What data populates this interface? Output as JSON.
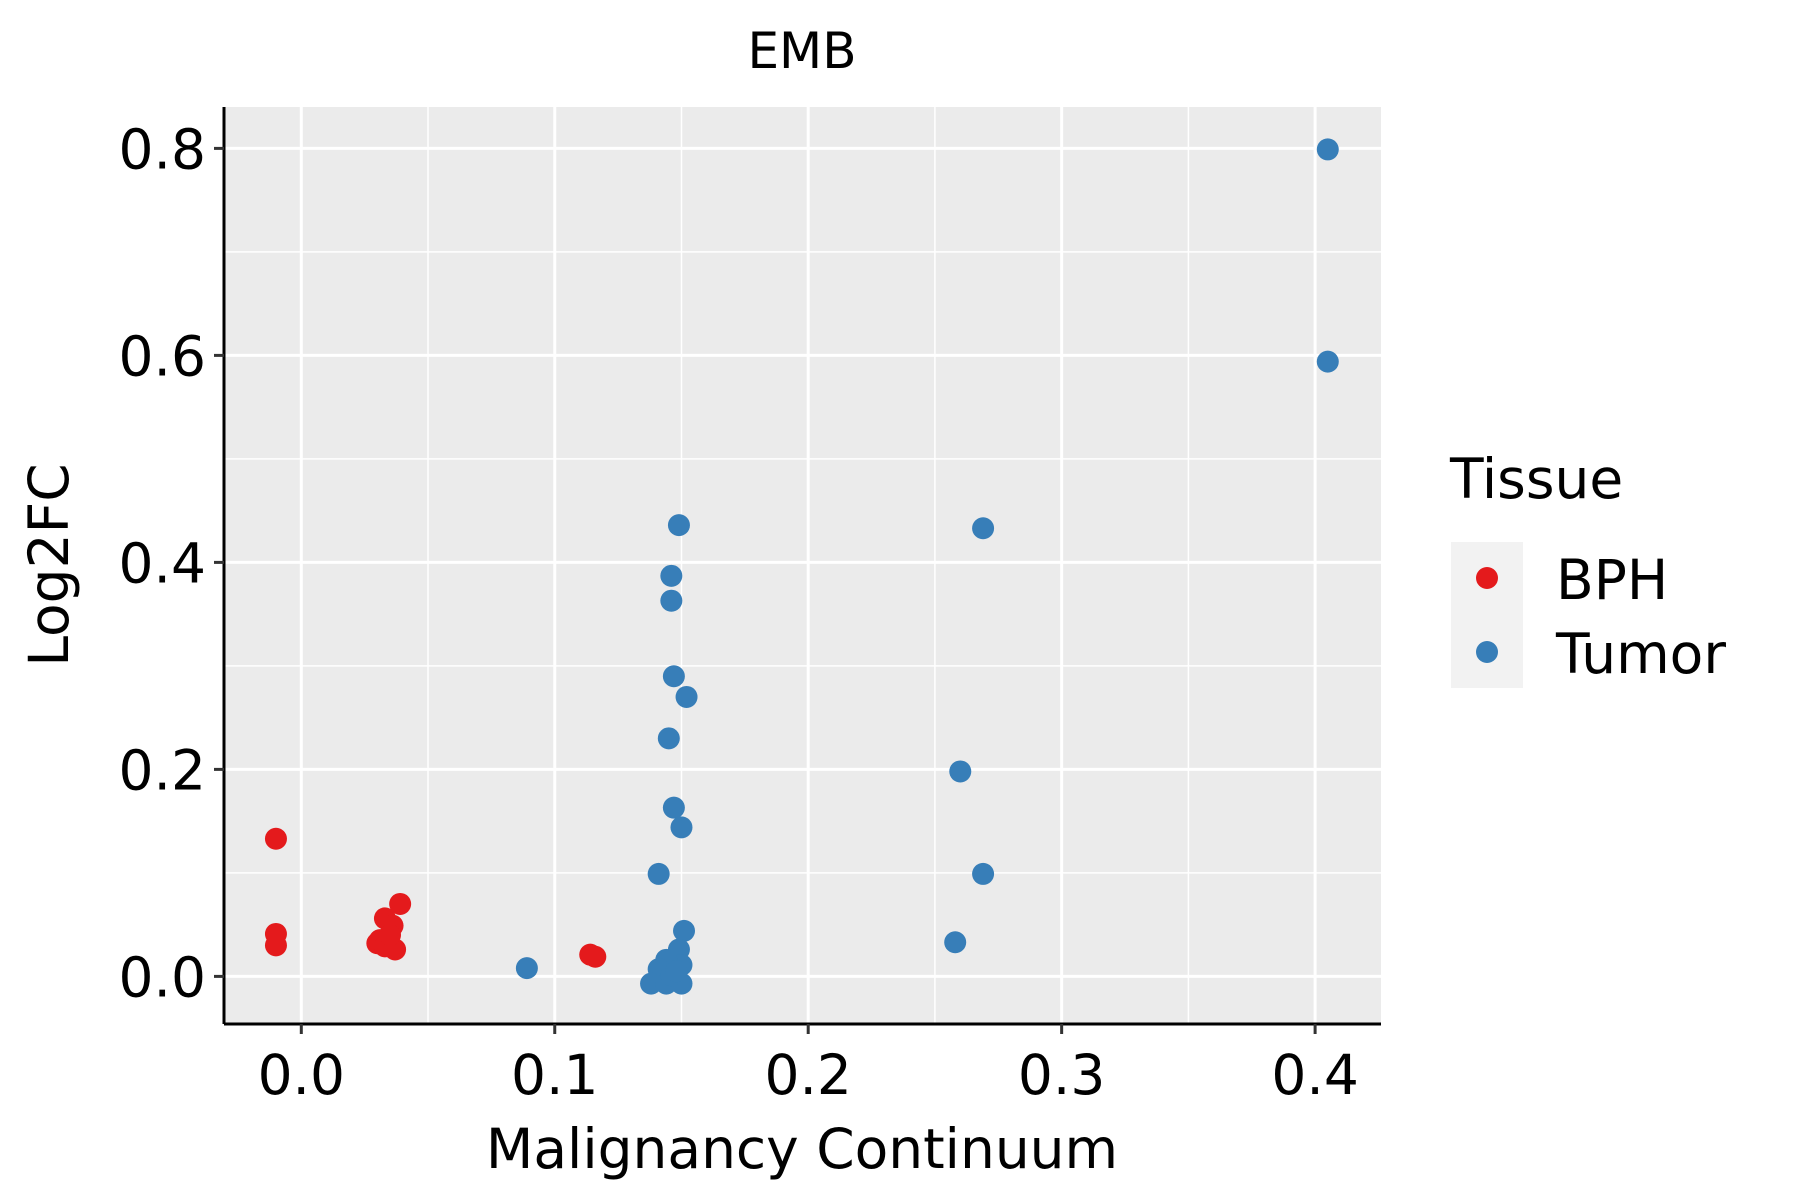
{
  "chart_data": {
    "type": "scatter",
    "title": "EMB",
    "xlabel": "Malignancy Continuum",
    "ylabel": "Log2FC",
    "xlim": [
      -0.0305,
      0.426
    ],
    "ylim": [
      -0.046,
      0.84
    ],
    "xticks": [
      0.0,
      0.1,
      0.2,
      0.3,
      0.4
    ],
    "xtick_labels": [
      "0.0",
      "0.1",
      "0.2",
      "0.3",
      "0.4"
    ],
    "yticks": [
      0.0,
      0.2,
      0.4,
      0.6,
      0.8
    ],
    "ytick_labels": [
      "0.0",
      "0.2",
      "0.4",
      "0.6",
      "0.8"
    ],
    "grid": true,
    "legend": {
      "title": "Tissue",
      "placement": "right"
    },
    "series": [
      {
        "name": "BPH",
        "color": "#E41A1C",
        "x": [
          -0.01,
          -0.01,
          -0.01,
          0.039,
          0.033,
          0.036,
          0.031,
          0.03,
          0.033,
          0.037,
          0.035,
          0.114,
          0.116
        ],
        "y": [
          0.133,
          0.041,
          0.03,
          0.07,
          0.056,
          0.049,
          0.035,
          0.032,
          0.029,
          0.026,
          0.04,
          0.021,
          0.019
        ]
      },
      {
        "name": "Tumor",
        "color": "#377EB8",
        "x": [
          0.089,
          0.149,
          0.146,
          0.146,
          0.147,
          0.152,
          0.145,
          0.147,
          0.15,
          0.141,
          0.151,
          0.149,
          0.15,
          0.144,
          0.141,
          0.138,
          0.144,
          0.15,
          0.146,
          0.148,
          0.269,
          0.26,
          0.269,
          0.258,
          0.405,
          0.405
        ],
        "y": [
          0.008,
          0.436,
          0.387,
          0.363,
          0.29,
          0.27,
          0.23,
          0.163,
          0.144,
          0.099,
          0.044,
          0.026,
          0.011,
          0.016,
          0.007,
          -0.007,
          -0.007,
          -0.007,
          0.001,
          0.005,
          0.433,
          0.198,
          0.099,
          0.033,
          0.799,
          0.594
        ]
      }
    ]
  }
}
